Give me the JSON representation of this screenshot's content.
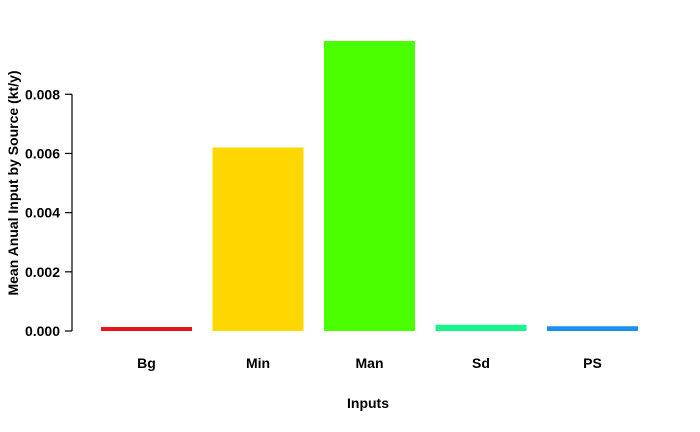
{
  "chart_data": {
    "type": "bar",
    "title": "",
    "xlabel": "Inputs",
    "ylabel": "Mean Anual Input by Source (kt/y)",
    "categories": [
      "Bg",
      "Min",
      "Man",
      "Sd",
      "PS"
    ],
    "values": [
      0.00013,
      0.0062,
      0.0098,
      0.00021,
      0.00016
    ],
    "colors": [
      "#e8141a",
      "#ffd700",
      "#4cff00",
      "#19f58e",
      "#1b8ff0"
    ],
    "ylim": [
      0,
      0.0098
    ],
    "yticks": [
      0,
      0.002,
      0.004,
      0.006,
      0.008
    ],
    "ytick_labels": [
      "0.000",
      "0.002",
      "0.004",
      "0.006",
      "0.008"
    ],
    "grid": false,
    "legend": "none"
  }
}
